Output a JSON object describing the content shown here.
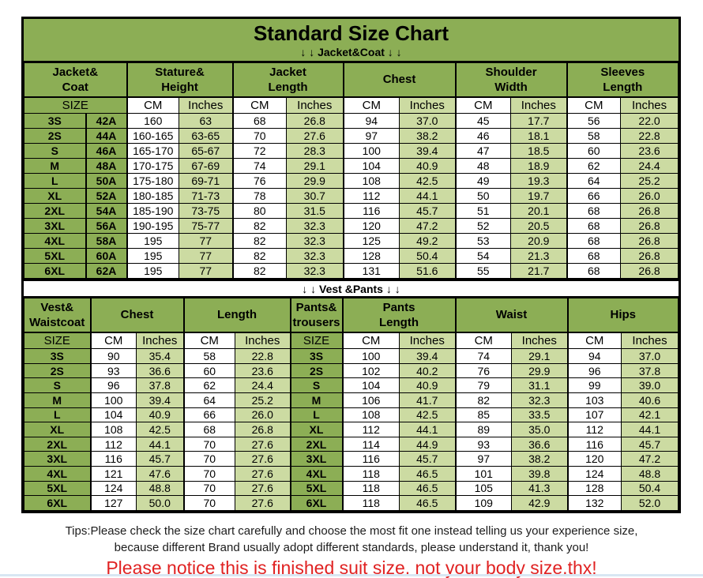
{
  "title": "Standard Size Chart",
  "jacket_section": {
    "section_label": "↓ ↓  Jacket&Coat ↓ ↓",
    "column_groups": [
      "Jacket&\nCoat",
      "Stature&\nHeight",
      "Jacket\nLength",
      "Chest",
      "Shoulder\nWidth",
      "Sleeves\nLength"
    ],
    "size_label": "SIZE",
    "cm_label": "CM",
    "inches_label": "Inches",
    "rows": [
      [
        "3S",
        "42A",
        "160",
        "63",
        "68",
        "26.8",
        "94",
        "37.0",
        "45",
        "17.7",
        "56",
        "22.0"
      ],
      [
        "2S",
        "44A",
        "160-165",
        "63-65",
        "70",
        "27.6",
        "97",
        "38.2",
        "46",
        "18.1",
        "58",
        "22.8"
      ],
      [
        "S",
        "46A",
        "165-170",
        "65-67",
        "72",
        "28.3",
        "100",
        "39.4",
        "47",
        "18.5",
        "60",
        "23.6"
      ],
      [
        "M",
        "48A",
        "170-175",
        "67-69",
        "74",
        "29.1",
        "104",
        "40.9",
        "48",
        "18.9",
        "62",
        "24.4"
      ],
      [
        "L",
        "50A",
        "175-180",
        "69-71",
        "76",
        "29.9",
        "108",
        "42.5",
        "49",
        "19.3",
        "64",
        "25.2"
      ],
      [
        "XL",
        "52A",
        "180-185",
        "71-73",
        "78",
        "30.7",
        "112",
        "44.1",
        "50",
        "19.7",
        "66",
        "26.0"
      ],
      [
        "2XL",
        "54A",
        "185-190",
        "73-75",
        "80",
        "31.5",
        "116",
        "45.7",
        "51",
        "20.1",
        "68",
        "26.8"
      ],
      [
        "3XL",
        "56A",
        "190-195",
        "75-77",
        "82",
        "32.3",
        "120",
        "47.2",
        "52",
        "20.5",
        "68",
        "26.8"
      ],
      [
        "4XL",
        "58A",
        "195",
        "77",
        "82",
        "32.3",
        "125",
        "49.2",
        "53",
        "20.9",
        "68",
        "26.8"
      ],
      [
        "5XL",
        "60A",
        "195",
        "77",
        "82",
        "32.3",
        "128",
        "50.4",
        "54",
        "21.3",
        "68",
        "26.8"
      ],
      [
        "6XL",
        "62A",
        "195",
        "77",
        "82",
        "32.3",
        "131",
        "51.6",
        "55",
        "21.7",
        "68",
        "26.8"
      ]
    ]
  },
  "vest_section": {
    "section_label": "↓ ↓  Vest &Pants ↓ ↓",
    "column_groups": [
      "Vest&\nWaistcoat",
      "Chest",
      "Length",
      "Pants&\ntrousers",
      "Pants\nLength",
      "Waist",
      "Hips"
    ],
    "size_label": "SIZE",
    "cm_label": "CM",
    "inches_label": "Inches",
    "rows": [
      [
        "3S",
        "90",
        "35.4",
        "58",
        "22.8",
        "3S",
        "100",
        "39.4",
        "74",
        "29.1",
        "94",
        "37.0"
      ],
      [
        "2S",
        "93",
        "36.6",
        "60",
        "23.6",
        "2S",
        "102",
        "40.2",
        "76",
        "29.9",
        "96",
        "37.8"
      ],
      [
        "S",
        "96",
        "37.8",
        "62",
        "24.4",
        "S",
        "104",
        "40.9",
        "79",
        "31.1",
        "99",
        "39.0"
      ],
      [
        "M",
        "100",
        "39.4",
        "64",
        "25.2",
        "M",
        "106",
        "41.7",
        "82",
        "32.3",
        "103",
        "40.6"
      ],
      [
        "L",
        "104",
        "40.9",
        "66",
        "26.0",
        "L",
        "108",
        "42.5",
        "85",
        "33.5",
        "107",
        "42.1"
      ],
      [
        "XL",
        "108",
        "42.5",
        "68",
        "26.8",
        "XL",
        "112",
        "44.1",
        "89",
        "35.0",
        "112",
        "44.1"
      ],
      [
        "2XL",
        "112",
        "44.1",
        "70",
        "27.6",
        "2XL",
        "114",
        "44.9",
        "93",
        "36.6",
        "116",
        "45.7"
      ],
      [
        "3XL",
        "116",
        "45.7",
        "70",
        "27.6",
        "3XL",
        "116",
        "45.7",
        "97",
        "38.2",
        "120",
        "47.2"
      ],
      [
        "4XL",
        "121",
        "47.6",
        "70",
        "27.6",
        "4XL",
        "118",
        "46.5",
        "101",
        "39.8",
        "124",
        "48.8"
      ],
      [
        "5XL",
        "124",
        "48.8",
        "70",
        "27.6",
        "5XL",
        "118",
        "46.5",
        "105",
        "41.3",
        "128",
        "50.4"
      ],
      [
        "6XL",
        "127",
        "50.0",
        "70",
        "27.6",
        "6XL",
        "118",
        "46.5",
        "109",
        "42.9",
        "132",
        "52.0"
      ]
    ]
  },
  "footer": {
    "tip_line1": "Tips:Please check the size chart carefully and choose the most fit one instead telling us your experience size,",
    "tip_line2": "because different Brand usually adopt different standards, please understand it, thank you!",
    "notice": "Please notice this is finished suit size, not your body size,thx!"
  },
  "colors": {
    "header_green": "#8cae55",
    "cell_light_green": "#ccdba2",
    "notice_red": "#e02222"
  }
}
